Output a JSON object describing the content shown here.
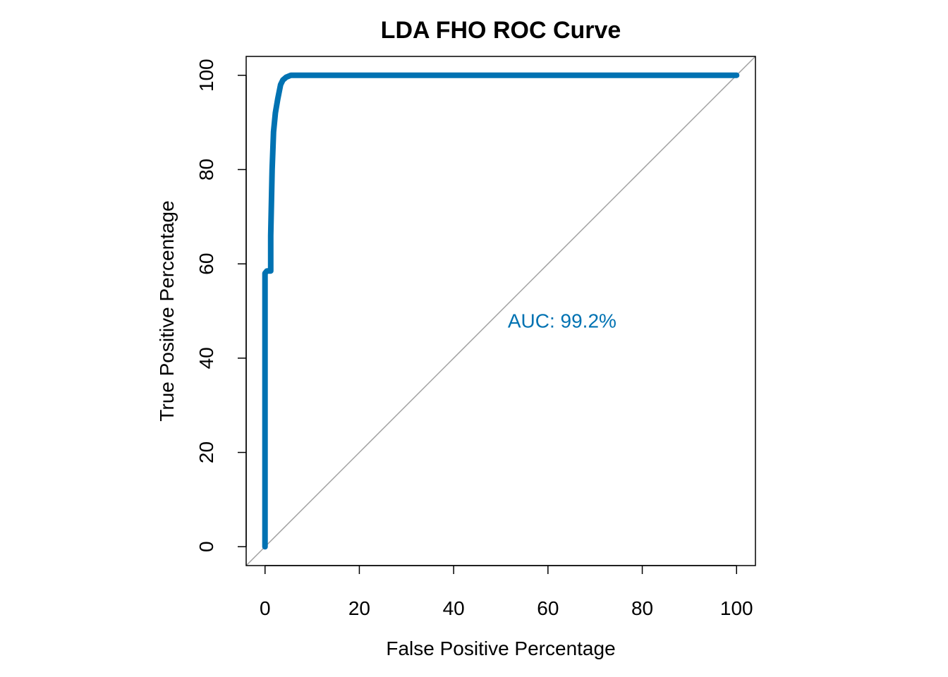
{
  "chart_data": {
    "type": "line",
    "title": "LDA FHO ROC Curve",
    "xlabel": "False Positive Percentage",
    "ylabel": "True Positive Percentage",
    "xlim": [
      -4,
      104
    ],
    "ylim": [
      -4,
      104
    ],
    "xticks": [
      0,
      20,
      40,
      60,
      80,
      100
    ],
    "yticks": [
      0,
      20,
      40,
      60,
      80,
      100
    ],
    "xtick_labels": [
      "0",
      "20",
      "40",
      "60",
      "80",
      "100"
    ],
    "ytick_labels": [
      "0",
      "20",
      "40",
      "60",
      "80",
      "100"
    ],
    "grid": false,
    "series": [
      {
        "color": "#0072B2",
        "x": [
          0,
          0,
          0.4,
          1.2,
          1.2,
          1.5,
          1.8,
          2.2,
          2.7,
          3.3,
          3.8,
          4.5,
          5.5,
          7,
          100
        ],
        "y": [
          0,
          58,
          58.5,
          58.5,
          66,
          80,
          88,
          92,
          95,
          98,
          99,
          99.6,
          100,
          100,
          100
        ]
      }
    ],
    "reference_line": {
      "x": [
        -4,
        104
      ],
      "y": [
        -4,
        104
      ],
      "color": "#a0a0a0"
    },
    "annotation": {
      "text": "AUC: 99.2%",
      "x": 63,
      "y": 48,
      "color": "#0072B2"
    }
  }
}
